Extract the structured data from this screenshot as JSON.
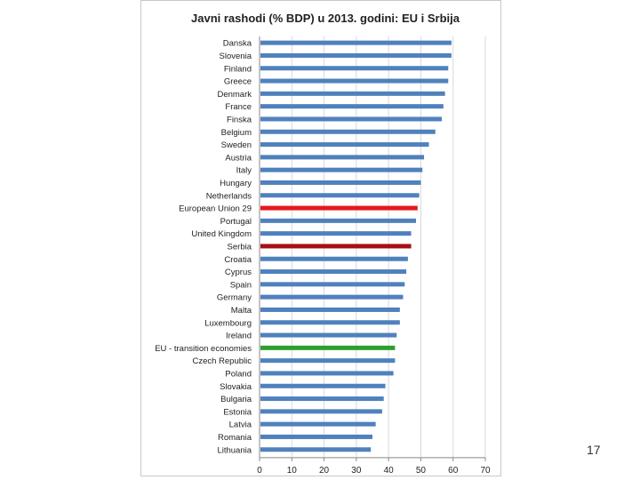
{
  "slide": {
    "page_number": "17"
  },
  "colors": {
    "default_bar": "#4f81bd",
    "highlight_eu": "#e31a1c",
    "highlight_serbia": "#a50f15",
    "highlight_transition": "#2ca02c",
    "grid": "#d9d9d9",
    "axis": "#888888"
  },
  "chart_data": {
    "type": "bar",
    "orientation": "horizontal",
    "title": "Javni rashodi (% BDP) u 2013. godini: EU i Srbija",
    "xlabel": "",
    "ylabel": "",
    "xlim": [
      0,
      70
    ],
    "xticks": [
      0,
      10,
      20,
      30,
      40,
      50,
      60,
      70
    ],
    "grid": true,
    "categories": [
      "Danska",
      "Slovenia",
      "Finland",
      "Greece",
      "Denmark",
      "France",
      "Finska",
      "Belgium",
      "Sweden",
      "Austria",
      "Italy",
      "Hungary",
      "Netherlands",
      "European Union 29",
      "Portugal",
      "United Kingdom",
      "Serbia",
      "Croatia",
      "Cyprus",
      "Spain",
      "Germany",
      "Malta",
      "Luxembourg",
      "Ireland",
      "EU - transition economies",
      "Czech Republic",
      "Poland",
      "Slovakia",
      "Bulgaria",
      "Estonia",
      "Latvia",
      "Romania",
      "Lithuania"
    ],
    "values": [
      59.5,
      59.5,
      58.5,
      58.5,
      57.5,
      57.0,
      56.5,
      54.5,
      52.5,
      51.0,
      50.5,
      50.0,
      49.5,
      49.0,
      48.5,
      47.0,
      47.0,
      46.0,
      45.5,
      45.0,
      44.5,
      43.5,
      43.5,
      42.5,
      42.0,
      42.0,
      41.5,
      39.0,
      38.5,
      38.0,
      36.0,
      35.0,
      34.5
    ],
    "highlights": {
      "European Union 29": "highlight_eu",
      "Serbia": "highlight_serbia",
      "EU - transition economies": "highlight_transition"
    }
  }
}
